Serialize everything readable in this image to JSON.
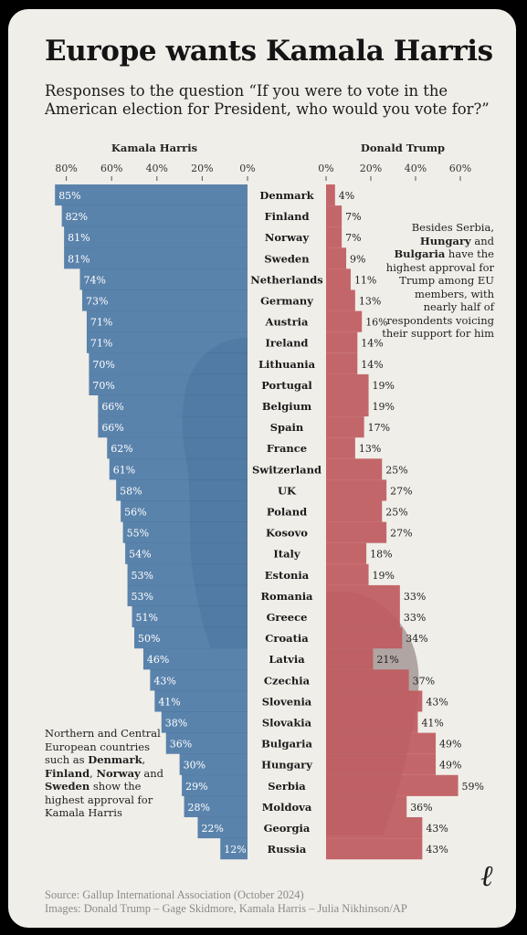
{
  "title": "Europe wants Kamala Harris",
  "subtitle": "Responses to the question “If you were to vote in the American election for President, who would you vote for?”",
  "note_harris": {
    "t1": "Northern and Central European countries such as ",
    "b1": "Denmark",
    "t2": ", ",
    "b2": "Finland",
    "t3": ", ",
    "b3": "Norway",
    "t4": " and ",
    "b4": "Sweden",
    "t5": " show the highest approval for Kamala Harris"
  },
  "note_trump": {
    "t1": "Besides Serbia, ",
    "b1": "Hungary",
    "t2": " and ",
    "b2": "Bulgaria",
    "t3": " have the highest approval for Trump among EU members, with nearly half of respondents voicing their support for him"
  },
  "footer": {
    "source": "Source: Gallup International Association (October 2024)",
    "images": "Images: Donald Trump – Gage Skidmore, Kamala Harris – Julia Nikhinson/AP"
  },
  "logo": "ℓ",
  "colors": {
    "harris": "#4d7aa6",
    "trump": "#bf5a5e",
    "background": "#f0eee8"
  },
  "chart_data": {
    "type": "bar",
    "orientation": "horizontal-diverging",
    "categories": [
      "Denmark",
      "Finland",
      "Norway",
      "Sweden",
      "Netherlands",
      "Germany",
      "Austria",
      "Ireland",
      "Lithuania",
      "Portugal",
      "Belgium",
      "Spain",
      "France",
      "Switzerland",
      "UK",
      "Poland",
      "Kosovo",
      "Italy",
      "Estonia",
      "Romania",
      "Greece",
      "Croatia",
      "Latvia",
      "Czechia",
      "Slovenia",
      "Slovakia",
      "Bulgaria",
      "Hungary",
      "Serbia",
      "Moldova",
      "Georgia",
      "Russia"
    ],
    "series": [
      {
        "name": "Kamala Harris",
        "values": [
          85,
          82,
          81,
          81,
          74,
          73,
          71,
          71,
          70,
          70,
          66,
          66,
          62,
          61,
          58,
          56,
          55,
          54,
          53,
          53,
          51,
          50,
          46,
          43,
          41,
          38,
          36,
          30,
          29,
          28,
          22,
          12
        ]
      },
      {
        "name": "Donald Trump",
        "values": [
          4,
          7,
          7,
          9,
          11,
          13,
          16,
          14,
          14,
          19,
          19,
          17,
          13,
          25,
          27,
          25,
          27,
          18,
          19,
          33,
          33,
          34,
          21,
          37,
          43,
          41,
          49,
          49,
          59,
          36,
          43,
          43
        ]
      }
    ],
    "harris_ticks": [
      "80%",
      "60%",
      "40%",
      "20%",
      "0%"
    ],
    "trump_ticks": [
      "0%",
      "20%",
      "40%",
      "60%"
    ],
    "xlim": [
      0,
      85
    ]
  }
}
